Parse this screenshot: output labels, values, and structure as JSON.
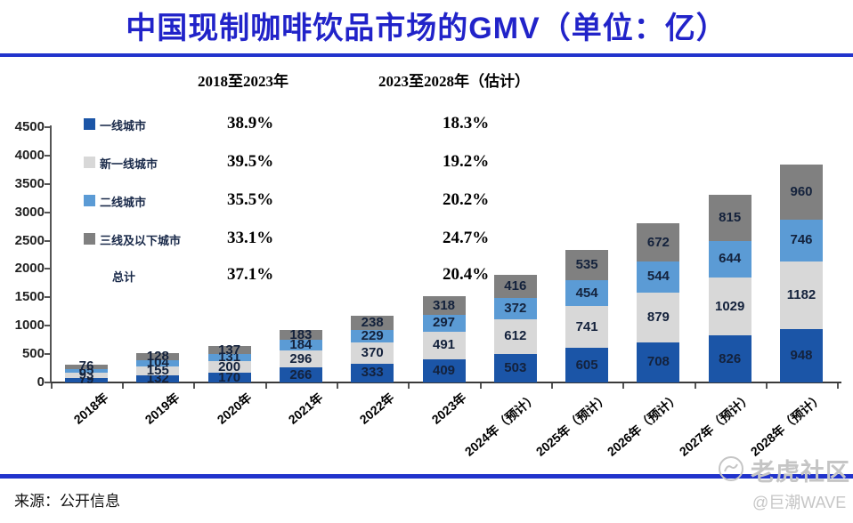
{
  "title": "中国现制咖啡饮品市场的GMV（单位：亿）",
  "source": "来源：公开信息",
  "watermark": {
    "community": "老虎社区",
    "handle": "@巨潮WAVE"
  },
  "growth_table": {
    "period_headers": [
      "2018至2023年",
      "2023至2028年（估计）"
    ],
    "rows": [
      {
        "label": "一线城市",
        "color": "#1B55A7",
        "cagr_2018_2023": "38.9%",
        "cagr_2023_2028": "18.3%"
      },
      {
        "label": "新一线城市",
        "color": "#D8D8D8",
        "cagr_2018_2023": "39.5%",
        "cagr_2023_2028": "19.2%"
      },
      {
        "label": "二线城市",
        "color": "#5B9BD5",
        "cagr_2018_2023": "35.5%",
        "cagr_2023_2028": "20.2%"
      },
      {
        "label": "三线及以下城市",
        "color": "#808080",
        "cagr_2018_2023": "33.1%",
        "cagr_2023_2028": "24.7%"
      },
      {
        "label": "总计",
        "color": null,
        "cagr_2018_2023": "37.1%",
        "cagr_2023_2028": "20.4%"
      }
    ]
  },
  "chart_data": {
    "type": "bar",
    "stacked": true,
    "title": "中国现制咖啡饮品市场的GMV（单位：亿）",
    "xlabel": "",
    "ylabel": "",
    "ylim": [
      0,
      4500
    ],
    "yticks": [
      0,
      500,
      1000,
      1500,
      2000,
      2500,
      3000,
      3500,
      4000,
      4500
    ],
    "grid": false,
    "legend_position": "upper-left-overlay",
    "categories": [
      "2018年",
      "2019年",
      "2020年",
      "2021年",
      "2022年",
      "2023年",
      "2024年（预计）",
      "2025年（预计）",
      "2026年（预计）",
      "2027年（预计）",
      "2028年（预计）"
    ],
    "series": [
      {
        "name": "一线城市",
        "color": "#1B55A7",
        "values": [
          79,
          132,
          170,
          266,
          333,
          409,
          503,
          605,
          708,
          826,
          948
        ]
      },
      {
        "name": "新一线城市",
        "color": "#D8D8D8",
        "values": [
          93,
          155,
          200,
          296,
          370,
          491,
          612,
          741,
          879,
          1029,
          1182
        ]
      },
      {
        "name": "二线城市",
        "color": "#5B9BD5",
        "values": [
          65,
          104,
          131,
          184,
          229,
          297,
          372,
          454,
          544,
          644,
          746
        ]
      },
      {
        "name": "三线及以下城市",
        "color": "#808080",
        "values": [
          76,
          128,
          137,
          183,
          238,
          318,
          416,
          535,
          672,
          815,
          960
        ]
      }
    ],
    "totals": [
      313,
      519,
      638,
      929,
      1170,
      1515,
      1903,
      2335,
      2803,
      3314,
      3836
    ]
  }
}
